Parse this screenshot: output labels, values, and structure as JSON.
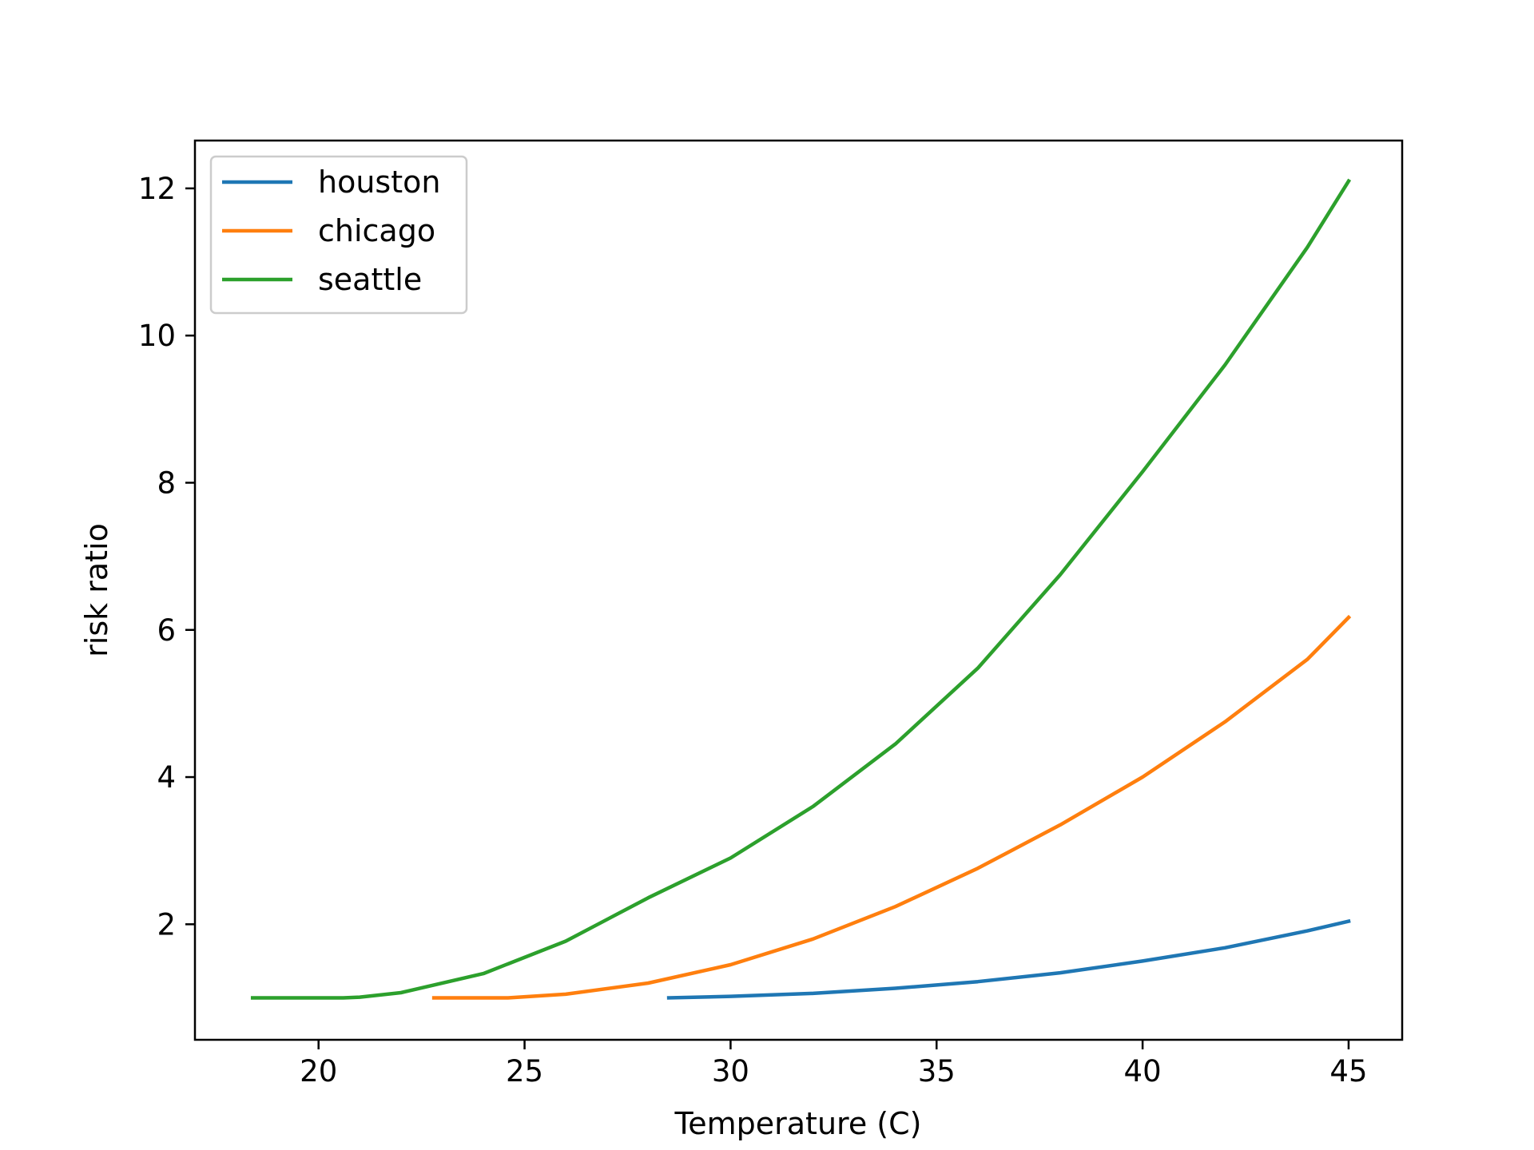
{
  "chart_data": {
    "type": "line",
    "title": "",
    "xlabel": "Temperature (C)",
    "ylabel": "risk ratio",
    "xlim": [
      17,
      46.3
    ],
    "ylim": [
      0.43,
      12.65
    ],
    "xticks": [
      20,
      25,
      30,
      35,
      40,
      45
    ],
    "yticks": [
      2,
      4,
      6,
      8,
      10,
      12
    ],
    "grid": false,
    "legend_position": "upper-left",
    "series": [
      {
        "name": "houston",
        "color": "#1f77b4",
        "x": [
          28.5,
          30,
          32,
          34,
          36,
          38,
          40,
          42,
          44,
          45
        ],
        "y": [
          1.0,
          1.02,
          1.06,
          1.13,
          1.22,
          1.34,
          1.5,
          1.68,
          1.91,
          2.04
        ]
      },
      {
        "name": "chicago",
        "color": "#ff7f0e",
        "x": [
          22.8,
          24,
          24.6,
          26,
          28,
          30,
          32,
          34,
          36,
          38,
          40,
          42,
          44,
          45
        ],
        "y": [
          1.0,
          1.0,
          1.0,
          1.05,
          1.2,
          1.45,
          1.8,
          2.24,
          2.76,
          3.35,
          4.0,
          4.75,
          5.6,
          6.17
        ]
      },
      {
        "name": "seattle",
        "color": "#2ca02c",
        "x": [
          18.4,
          19,
          20,
          20.6,
          21,
          22,
          24,
          26,
          28,
          30,
          32,
          34,
          36,
          38,
          40,
          42,
          44,
          45
        ],
        "y": [
          1.0,
          1.0,
          1.0,
          1.0,
          1.01,
          1.07,
          1.33,
          1.77,
          2.36,
          2.9,
          3.6,
          4.45,
          5.48,
          6.75,
          8.15,
          9.6,
          11.2,
          12.1
        ]
      }
    ]
  }
}
